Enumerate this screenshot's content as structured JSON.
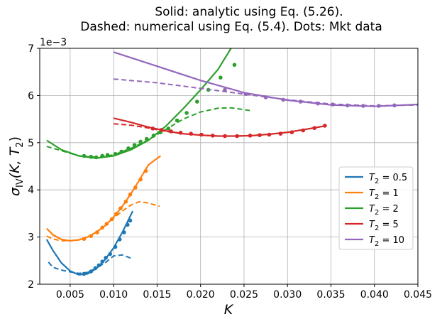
{
  "chart_data": {
    "type": "line",
    "title_lines": [
      "Solid: analytic using Eq. (5.26).",
      "Dashed: numerical using Eq. (5.4). Dots: Mkt data"
    ],
    "xlabel": "K",
    "ylabel": "σ_IV(K, T_2)",
    "ylabel_main": "σ",
    "ylabel_sub": "IV",
    "ylabel_args": "(K, T",
    "ylabel_args_sub": "2",
    "ylabel_close": ")",
    "y_offset_text": "1e−3",
    "xlim": [
      0.0015,
      0.045
    ],
    "ylim": [
      2,
      7
    ],
    "xticks": [
      0.005,
      0.01,
      0.015,
      0.02,
      0.025,
      0.03,
      0.035,
      0.04,
      0.045
    ],
    "xtick_labels": [
      "0.005",
      "0.010",
      "0.015",
      "0.020",
      "0.025",
      "0.030",
      "0.035",
      "0.040",
      "0.045"
    ],
    "yticks": [
      2,
      3,
      4,
      5,
      6,
      7
    ],
    "ytick_labels": [
      "2",
      "3",
      "4",
      "5",
      "6",
      "7"
    ],
    "grid": true,
    "legend_position": "lower-right",
    "series": [
      {
        "name": "T2 = 0.5",
        "legend_main": "T",
        "legend_sub": "2",
        "legend_rest": " = 0.5",
        "color": "#1f77b4",
        "analytic": [
          [
            0.0023,
            2.95
          ],
          [
            0.003,
            2.72
          ],
          [
            0.004,
            2.45
          ],
          [
            0.005,
            2.28
          ],
          [
            0.006,
            2.2
          ],
          [
            0.007,
            2.22
          ],
          [
            0.008,
            2.33
          ],
          [
            0.009,
            2.52
          ],
          [
            0.01,
            2.77
          ],
          [
            0.011,
            3.1
          ],
          [
            0.0122,
            3.55
          ]
        ],
        "numerical": [
          [
            0.0025,
            2.47
          ],
          [
            0.003,
            2.36
          ],
          [
            0.004,
            2.3
          ],
          [
            0.005,
            2.26
          ],
          [
            0.006,
            2.23
          ],
          [
            0.007,
            2.25
          ],
          [
            0.008,
            2.34
          ],
          [
            0.009,
            2.45
          ],
          [
            0.01,
            2.6
          ],
          [
            0.011,
            2.62
          ],
          [
            0.012,
            2.55
          ]
        ],
        "market": [
          [
            0.0066,
            2.22
          ],
          [
            0.0074,
            2.27
          ],
          [
            0.0079,
            2.34
          ],
          [
            0.0083,
            2.4
          ],
          [
            0.0087,
            2.48
          ],
          [
            0.0091,
            2.56
          ],
          [
            0.0096,
            2.64
          ],
          [
            0.0102,
            2.79
          ],
          [
            0.0107,
            2.95
          ],
          [
            0.0112,
            3.1
          ],
          [
            0.0116,
            3.26
          ],
          [
            0.0119,
            3.35
          ]
        ]
      },
      {
        "name": "T2 = 1",
        "legend_main": "T",
        "legend_sub": "2",
        "legend_rest": " = 1",
        "color": "#ff7f0e",
        "analytic": [
          [
            0.0023,
            3.18
          ],
          [
            0.003,
            3.05
          ],
          [
            0.004,
            2.95
          ],
          [
            0.005,
            2.92
          ],
          [
            0.006,
            2.94
          ],
          [
            0.007,
            3.0
          ],
          [
            0.008,
            3.1
          ],
          [
            0.009,
            3.24
          ],
          [
            0.01,
            3.42
          ],
          [
            0.011,
            3.65
          ],
          [
            0.012,
            3.92
          ],
          [
            0.013,
            4.22
          ],
          [
            0.014,
            4.53
          ],
          [
            0.0154,
            4.72
          ]
        ],
        "numerical": [
          [
            0.0023,
            3.02
          ],
          [
            0.003,
            2.96
          ],
          [
            0.004,
            2.92
          ],
          [
            0.005,
            2.92
          ],
          [
            0.006,
            2.94
          ],
          [
            0.007,
            3.0
          ],
          [
            0.008,
            3.1
          ],
          [
            0.009,
            3.24
          ],
          [
            0.01,
            3.4
          ],
          [
            0.011,
            3.55
          ],
          [
            0.012,
            3.68
          ],
          [
            0.013,
            3.75
          ],
          [
            0.014,
            3.72
          ],
          [
            0.0153,
            3.65
          ]
        ],
        "market": [
          [
            0.0066,
            2.96
          ],
          [
            0.0074,
            3.02
          ],
          [
            0.0081,
            3.1
          ],
          [
            0.0087,
            3.2
          ],
          [
            0.0092,
            3.28
          ],
          [
            0.0098,
            3.38
          ],
          [
            0.0103,
            3.49
          ],
          [
            0.0108,
            3.61
          ],
          [
            0.0114,
            3.75
          ],
          [
            0.0119,
            3.9
          ],
          [
            0.0125,
            4.05
          ],
          [
            0.0131,
            4.22
          ],
          [
            0.0137,
            4.4
          ]
        ]
      },
      {
        "name": "T2 = 2",
        "legend_main": "T",
        "legend_sub": "2",
        "legend_rest": " = 2",
        "color": "#2ca02c",
        "analytic": [
          [
            0.0023,
            5.05
          ],
          [
            0.004,
            4.85
          ],
          [
            0.006,
            4.72
          ],
          [
            0.008,
            4.67
          ],
          [
            0.01,
            4.72
          ],
          [
            0.012,
            4.85
          ],
          [
            0.014,
            5.05
          ],
          [
            0.016,
            5.35
          ],
          [
            0.018,
            5.72
          ],
          [
            0.02,
            6.12
          ],
          [
            0.022,
            6.55
          ],
          [
            0.0235,
            7.0
          ]
        ],
        "numerical": [
          [
            0.0023,
            4.92
          ],
          [
            0.004,
            4.83
          ],
          [
            0.006,
            4.72
          ],
          [
            0.008,
            4.69
          ],
          [
            0.01,
            4.74
          ],
          [
            0.012,
            4.88
          ],
          [
            0.014,
            5.06
          ],
          [
            0.016,
            5.28
          ],
          [
            0.018,
            5.5
          ],
          [
            0.02,
            5.65
          ],
          [
            0.022,
            5.73
          ],
          [
            0.0235,
            5.74
          ],
          [
            0.0257,
            5.68
          ]
        ],
        "market": [
          [
            0.0066,
            4.72
          ],
          [
            0.0074,
            4.7
          ],
          [
            0.008,
            4.69
          ],
          [
            0.0087,
            4.72
          ],
          [
            0.0093,
            4.74
          ],
          [
            0.0102,
            4.76
          ],
          [
            0.0109,
            4.81
          ],
          [
            0.0117,
            4.88
          ],
          [
            0.0124,
            4.95
          ],
          [
            0.0131,
            5.02
          ],
          [
            0.0138,
            5.08
          ],
          [
            0.0146,
            5.15
          ],
          [
            0.0154,
            5.22
          ],
          [
            0.0163,
            5.3
          ],
          [
            0.0173,
            5.47
          ],
          [
            0.0184,
            5.63
          ],
          [
            0.0196,
            5.87
          ],
          [
            0.0209,
            6.12
          ],
          [
            0.0223,
            6.38
          ],
          [
            0.0239,
            6.65
          ]
        ]
      },
      {
        "name": "T2 = 5",
        "legend_main": "T",
        "legend_sub": "2",
        "legend_rest": " = 5",
        "color": "#d62728",
        "analytic": [
          [
            0.01,
            5.52
          ],
          [
            0.012,
            5.43
          ],
          [
            0.014,
            5.33
          ],
          [
            0.016,
            5.25
          ],
          [
            0.018,
            5.19
          ],
          [
            0.02,
            5.16
          ],
          [
            0.022,
            5.14
          ],
          [
            0.024,
            5.14
          ],
          [
            0.026,
            5.15
          ],
          [
            0.028,
            5.18
          ],
          [
            0.03,
            5.22
          ],
          [
            0.032,
            5.28
          ],
          [
            0.0345,
            5.36
          ]
        ],
        "numerical": [
          [
            0.01,
            5.4
          ],
          [
            0.012,
            5.37
          ],
          [
            0.014,
            5.31
          ],
          [
            0.016,
            5.24
          ],
          [
            0.018,
            5.19
          ],
          [
            0.02,
            5.16
          ],
          [
            0.022,
            5.14
          ],
          [
            0.024,
            5.14
          ],
          [
            0.026,
            5.15
          ],
          [
            0.028,
            5.18
          ],
          [
            0.03,
            5.22
          ],
          [
            0.032,
            5.28
          ],
          [
            0.0345,
            5.36
          ]
        ],
        "market": [
          [
            0.0145,
            5.3
          ],
          [
            0.0155,
            5.27
          ],
          [
            0.0166,
            5.24
          ],
          [
            0.0177,
            5.21
          ],
          [
            0.0189,
            5.19
          ],
          [
            0.0201,
            5.17
          ],
          [
            0.0214,
            5.15
          ],
          [
            0.0228,
            5.14
          ],
          [
            0.0242,
            5.14
          ],
          [
            0.0257,
            5.15
          ],
          [
            0.0268,
            5.16
          ],
          [
            0.0279,
            5.17
          ],
          [
            0.0292,
            5.19
          ],
          [
            0.0305,
            5.22
          ],
          [
            0.0318,
            5.26
          ],
          [
            0.0331,
            5.31
          ],
          [
            0.0343,
            5.36
          ]
        ]
      },
      {
        "name": "T2 = 10",
        "legend_main": "T",
        "legend_sub": "2",
        "legend_rest": " = 10",
        "color": "#9467bd",
        "analytic": [
          [
            0.01,
            6.92
          ],
          [
            0.015,
            6.62
          ],
          [
            0.02,
            6.32
          ],
          [
            0.025,
            6.06
          ],
          [
            0.03,
            5.9
          ],
          [
            0.035,
            5.8
          ],
          [
            0.04,
            5.77
          ],
          [
            0.045,
            5.81
          ]
        ],
        "numerical": [
          [
            0.01,
            6.35
          ],
          [
            0.015,
            6.27
          ],
          [
            0.02,
            6.15
          ],
          [
            0.025,
            6.03
          ],
          [
            0.03,
            5.91
          ],
          [
            0.035,
            5.82
          ],
          [
            0.04,
            5.78
          ],
          [
            0.045,
            5.8
          ]
        ],
        "market": [
          [
            0.0228,
            6.12
          ],
          [
            0.0252,
            6.03
          ],
          [
            0.0275,
            5.96
          ],
          [
            0.0295,
            5.91
          ],
          [
            0.0315,
            5.87
          ],
          [
            0.0335,
            5.83
          ],
          [
            0.0352,
            5.81
          ],
          [
            0.0369,
            5.79
          ],
          [
            0.0387,
            5.78
          ],
          [
            0.0405,
            5.78
          ],
          [
            0.0423,
            5.79
          ]
        ]
      }
    ]
  }
}
